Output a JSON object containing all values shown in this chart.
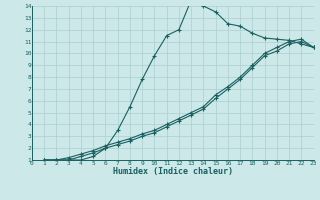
{
  "xlabel": "Humidex (Indice chaleur)",
  "bg_color": "#cce8e8",
  "line_color": "#1a6060",
  "grid_color": "#aacfcf",
  "xlim": [
    0,
    23
  ],
  "ylim": [
    1,
    14
  ],
  "xticks": [
    0,
    1,
    2,
    3,
    4,
    5,
    6,
    7,
    8,
    9,
    10,
    11,
    12,
    13,
    14,
    15,
    16,
    17,
    18,
    19,
    20,
    21,
    22,
    23
  ],
  "yticks": [
    1,
    2,
    3,
    4,
    5,
    6,
    7,
    8,
    9,
    10,
    11,
    12,
    13,
    14
  ],
  "line1_x": [
    1,
    2,
    3,
    4,
    5,
    6,
    7,
    8,
    9,
    10,
    11,
    12,
    13,
    14,
    15,
    16,
    17,
    18,
    19,
    20,
    21,
    22,
    23
  ],
  "line1_y": [
    1,
    1,
    1,
    1,
    1.3,
    2.0,
    3.5,
    5.5,
    7.8,
    9.8,
    11.5,
    12.0,
    14.5,
    14.0,
    13.5,
    12.5,
    12.3,
    11.7,
    11.3,
    11.2,
    11.1,
    10.8,
    10.5
  ],
  "line2_x": [
    1,
    2,
    3,
    4,
    5,
    6,
    7,
    8,
    9,
    10,
    11,
    12,
    13,
    14,
    15,
    16,
    17,
    18,
    19,
    20,
    21,
    22,
    23
  ],
  "line2_y": [
    1,
    1,
    1.2,
    1.5,
    1.8,
    2.2,
    2.5,
    2.8,
    3.2,
    3.5,
    4.0,
    4.5,
    5.0,
    5.5,
    6.5,
    7.2,
    8.0,
    9.0,
    10.0,
    10.5,
    11.0,
    11.2,
    10.5
  ],
  "line3_x": [
    1,
    2,
    3,
    4,
    5,
    6,
    7,
    8,
    9,
    10,
    11,
    12,
    13,
    14,
    15,
    16,
    17,
    18,
    19,
    20,
    21,
    22,
    23
  ],
  "line3_y": [
    1,
    1,
    1.0,
    1.3,
    1.6,
    2.0,
    2.3,
    2.6,
    3.0,
    3.3,
    3.8,
    4.3,
    4.8,
    5.3,
    6.2,
    7.0,
    7.8,
    8.8,
    9.8,
    10.2,
    10.8,
    11.0,
    10.5
  ]
}
